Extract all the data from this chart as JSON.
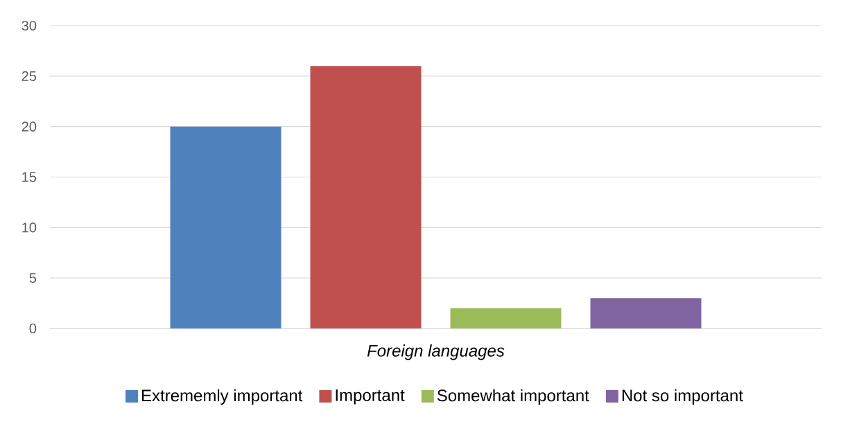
{
  "chart_data": {
    "type": "bar",
    "categories": [
      "Foreign languages"
    ],
    "series": [
      {
        "name": "Extrememly important",
        "color": "#4f81bd",
        "values": [
          20
        ]
      },
      {
        "name": "Important",
        "color": "#c0504d",
        "values": [
          26
        ]
      },
      {
        "name": "Somewhat important",
        "color": "#9bbb59",
        "values": [
          2
        ]
      },
      {
        "name": "Not so important",
        "color": "#8064a2",
        "values": [
          3
        ]
      }
    ],
    "ylim": [
      0,
      30
    ],
    "yticks": [
      0,
      5,
      10,
      15,
      20,
      25,
      30
    ],
    "grid": "y",
    "legend": "bottom"
  }
}
